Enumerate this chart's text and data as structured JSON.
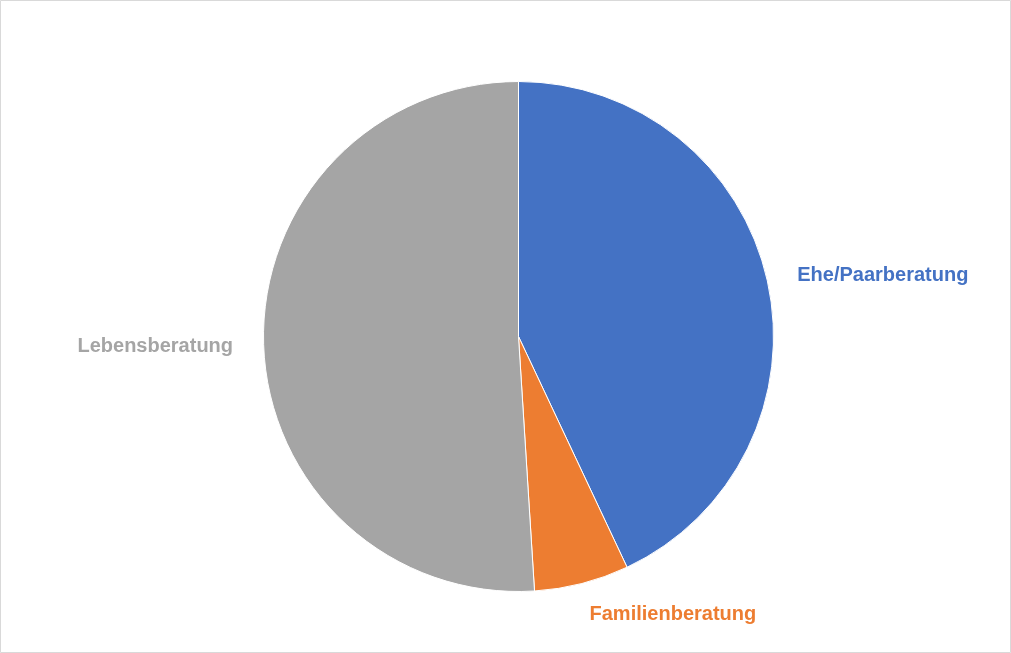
{
  "chart_data": {
    "type": "pie",
    "categories": [
      "Ehe/Paarberatung",
      "Familienberatung",
      "Lebensberatung"
    ],
    "values": [
      43,
      6,
      51
    ],
    "colors": [
      "#4472c4",
      "#ed7d31",
      "#a5a5a5"
    ]
  }
}
